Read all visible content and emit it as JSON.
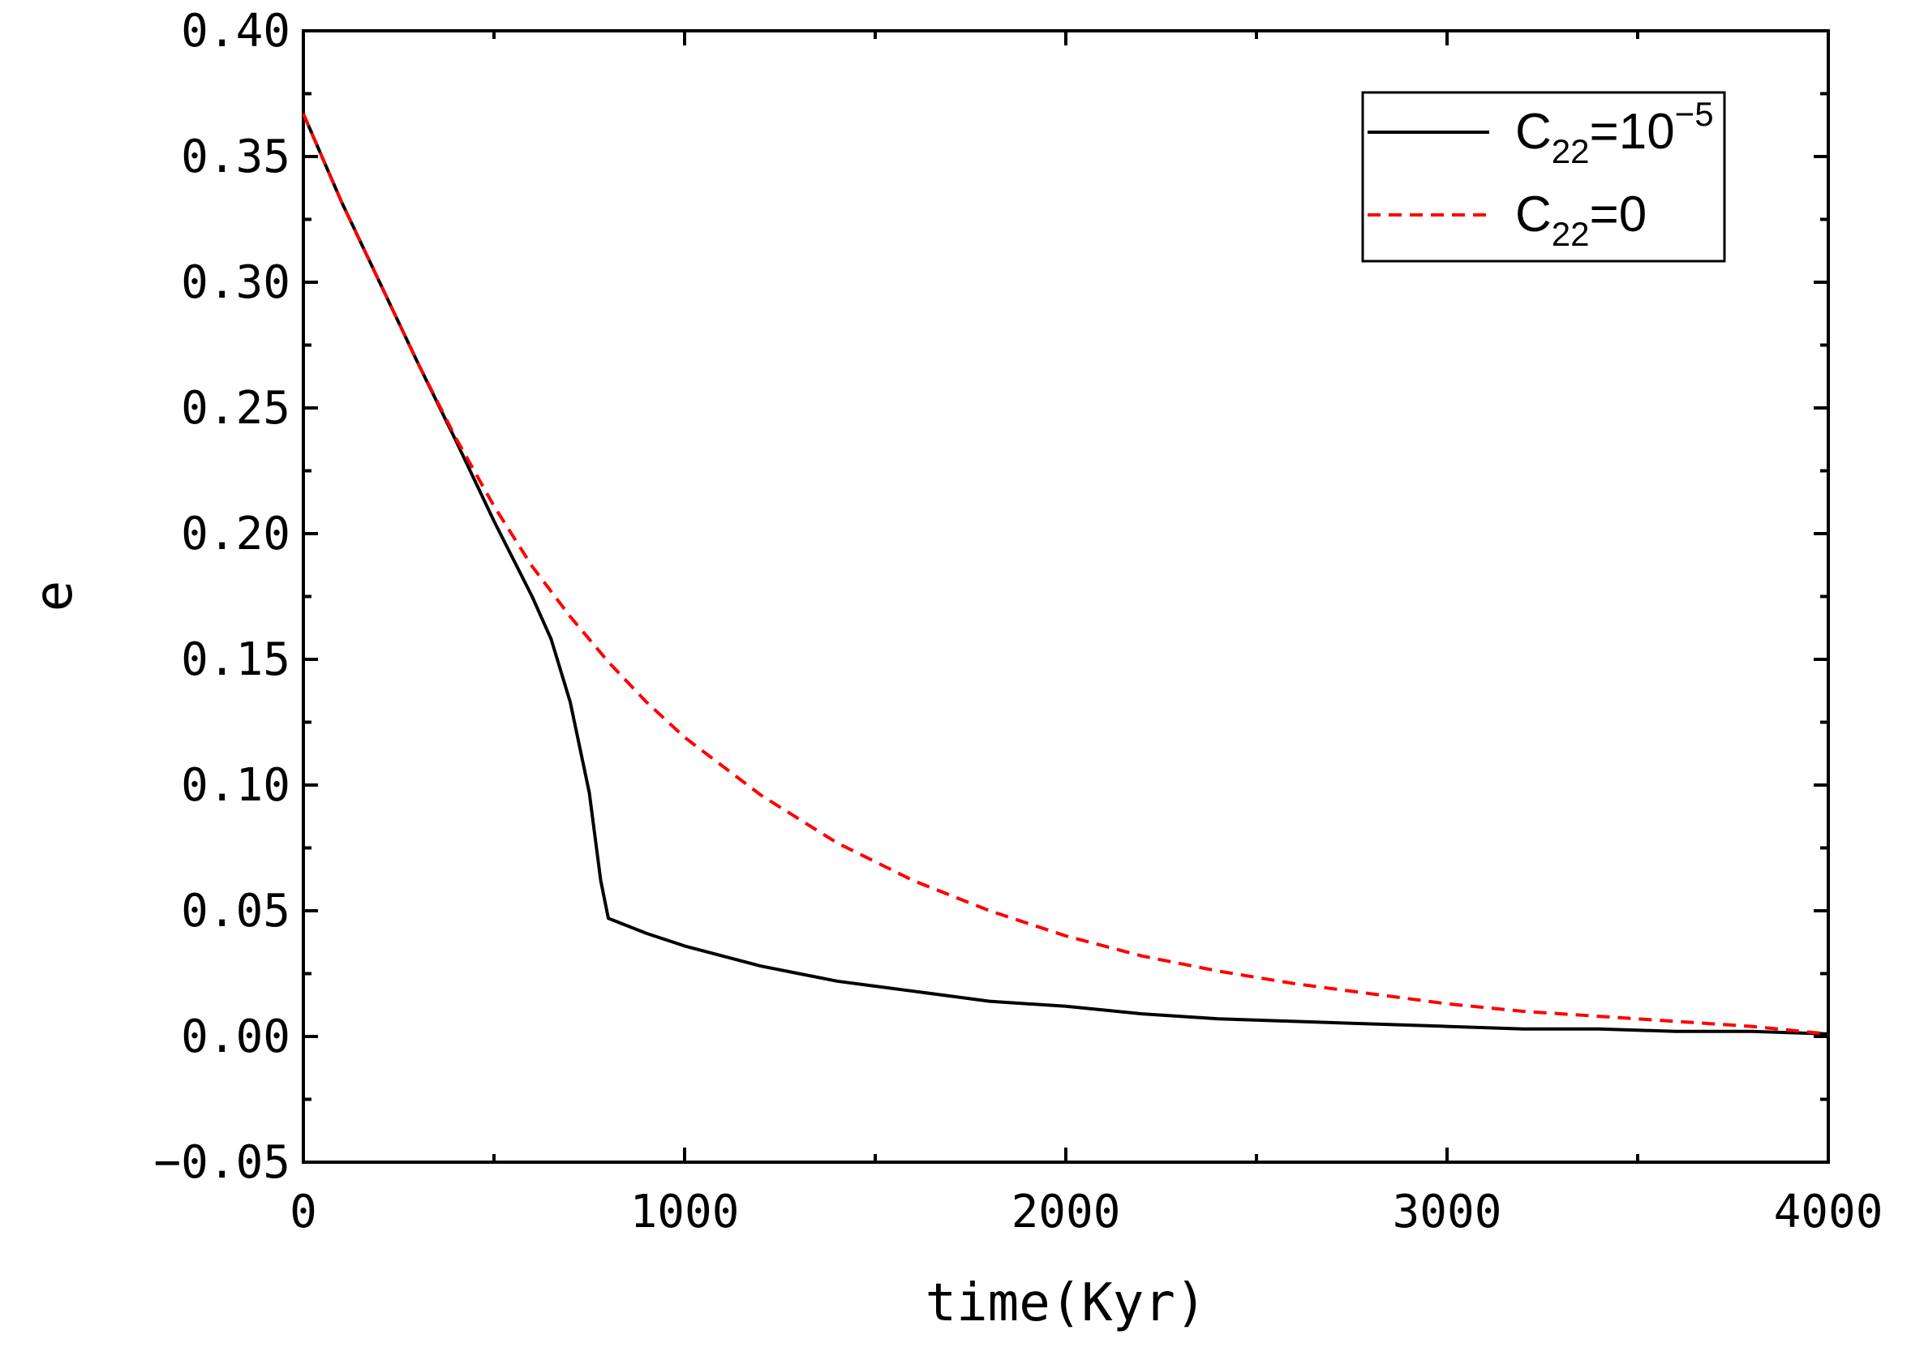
{
  "chart_data": {
    "type": "line",
    "title": "",
    "xlabel": "time(Kyr)",
    "ylabel": "e",
    "xlim": [
      0,
      4000
    ],
    "ylim": [
      -0.05,
      0.4
    ],
    "x_ticks": [
      0,
      1000,
      2000,
      3000,
      4000
    ],
    "x_tick_labels": [
      "0",
      "1000",
      "2000",
      "3000",
      "4000"
    ],
    "y_ticks": [
      -0.05,
      0.0,
      0.05,
      0.1,
      0.15,
      0.2,
      0.25,
      0.3,
      0.35,
      0.4
    ],
    "y_tick_labels": [
      "−0.05",
      "0.00",
      "0.05",
      "0.10",
      "0.15",
      "0.20",
      "0.25",
      "0.30",
      "0.35",
      "0.40"
    ],
    "grid": false,
    "legend_position": "top-right",
    "series": [
      {
        "name": "C22=10^-5",
        "legend": {
          "base": "C",
          "sub": "22",
          "rest": "=10",
          "sup": "−5"
        },
        "color": "#000000",
        "style": "solid",
        "x": [
          0,
          100,
          200,
          300,
          400,
          500,
          600,
          650,
          700,
          750,
          780,
          800,
          900,
          1000,
          1100,
          1200,
          1300,
          1400,
          1500,
          1600,
          1700,
          1800,
          1900,
          2000,
          2200,
          2400,
          2600,
          2800,
          3000,
          3200,
          3400,
          3600,
          3800,
          4000
        ],
        "y": [
          0.367,
          0.332,
          0.3,
          0.268,
          0.237,
          0.205,
          0.175,
          0.158,
          0.133,
          0.097,
          0.062,
          0.047,
          0.041,
          0.036,
          0.032,
          0.028,
          0.025,
          0.022,
          0.02,
          0.018,
          0.016,
          0.014,
          0.013,
          0.012,
          0.009,
          0.007,
          0.006,
          0.005,
          0.004,
          0.003,
          0.003,
          0.002,
          0.002,
          0.001
        ]
      },
      {
        "name": "C22=0",
        "legend": {
          "base": "C",
          "sub": "22",
          "rest": "=0",
          "sup": ""
        },
        "color": "#ff0000",
        "style": "dashed",
        "x": [
          0,
          100,
          200,
          300,
          400,
          500,
          600,
          700,
          800,
          900,
          1000,
          1200,
          1400,
          1600,
          1800,
          2000,
          2200,
          2400,
          2600,
          2800,
          3000,
          3200,
          3400,
          3600,
          3800,
          4000
        ],
        "y": [
          0.367,
          0.332,
          0.3,
          0.268,
          0.238,
          0.211,
          0.187,
          0.167,
          0.149,
          0.133,
          0.119,
          0.096,
          0.077,
          0.062,
          0.05,
          0.04,
          0.032,
          0.026,
          0.021,
          0.017,
          0.013,
          0.01,
          0.008,
          0.006,
          0.004,
          0.001
        ]
      }
    ]
  }
}
